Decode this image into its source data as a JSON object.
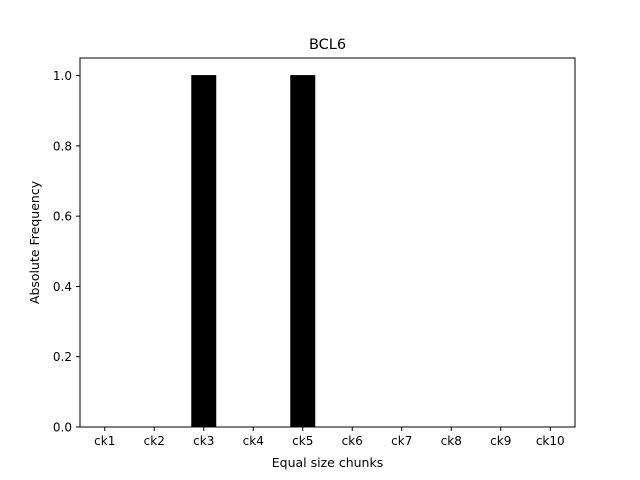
{
  "chart_data": {
    "type": "bar",
    "title": "BCL6",
    "xlabel": "Equal size chunks",
    "ylabel": "Absolute Frequency",
    "categories": [
      "ck1",
      "ck2",
      "ck3",
      "ck4",
      "ck5",
      "ck6",
      "ck7",
      "ck8",
      "ck9",
      "ck10"
    ],
    "values": [
      0,
      0,
      1,
      0,
      1,
      0,
      0,
      0,
      0,
      0
    ],
    "ylim": [
      0,
      1.05
    ],
    "yticks": [
      "0.0",
      "0.2",
      "0.4",
      "0.6",
      "0.8",
      "1.0"
    ],
    "grid": false,
    "bar_color": "#000000"
  }
}
